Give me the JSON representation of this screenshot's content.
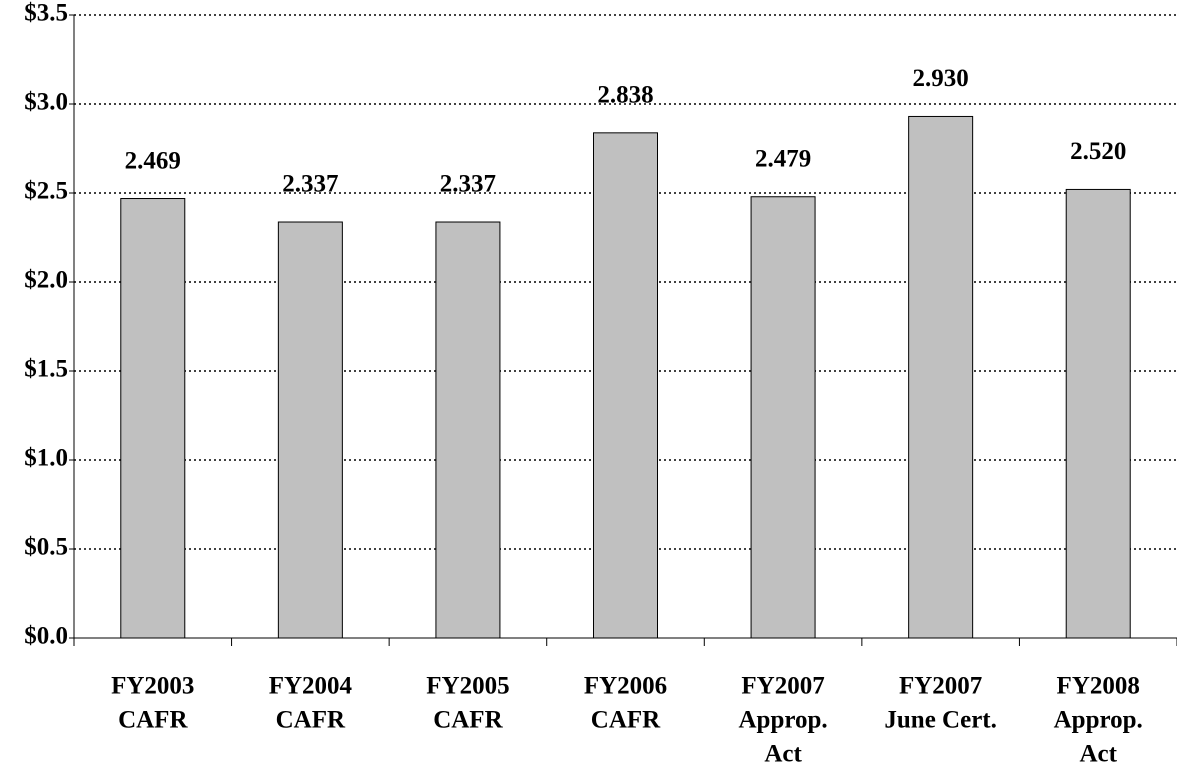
{
  "chart_data": {
    "type": "bar",
    "categories": [
      [
        "FY2003",
        "CAFR"
      ],
      [
        "FY2004",
        "CAFR"
      ],
      [
        "FY2005",
        "CAFR"
      ],
      [
        "FY2006",
        "CAFR"
      ],
      [
        "FY2007",
        "Approp.",
        "Act"
      ],
      [
        "FY2007",
        "June Cert."
      ],
      [
        "FY2008",
        "Approp.",
        "Act"
      ]
    ],
    "values": [
      2.469,
      2.337,
      2.337,
      2.838,
      2.479,
      2.93,
      2.52
    ],
    "value_labels": [
      "2.469",
      "2.337",
      "2.337",
      "2.838",
      "2.479",
      "2.930",
      "2.520"
    ],
    "color": "#c0c0c0",
    "ylim": [
      0,
      3.5
    ],
    "yticks": [
      {
        "value": 0,
        "label": "$0.0"
      },
      {
        "value": 0.5,
        "label": "$0.5"
      },
      {
        "value": 1,
        "label": "$1.0"
      },
      {
        "value": 1.5,
        "label": "$1.5"
      },
      {
        "value": 2,
        "label": "$2.0"
      },
      {
        "value": 2.5,
        "label": "$2.5"
      },
      {
        "value": 3,
        "label": "$3.0"
      },
      {
        "value": 3.5,
        "label": "$3.5"
      }
    ],
    "grid": true
  }
}
